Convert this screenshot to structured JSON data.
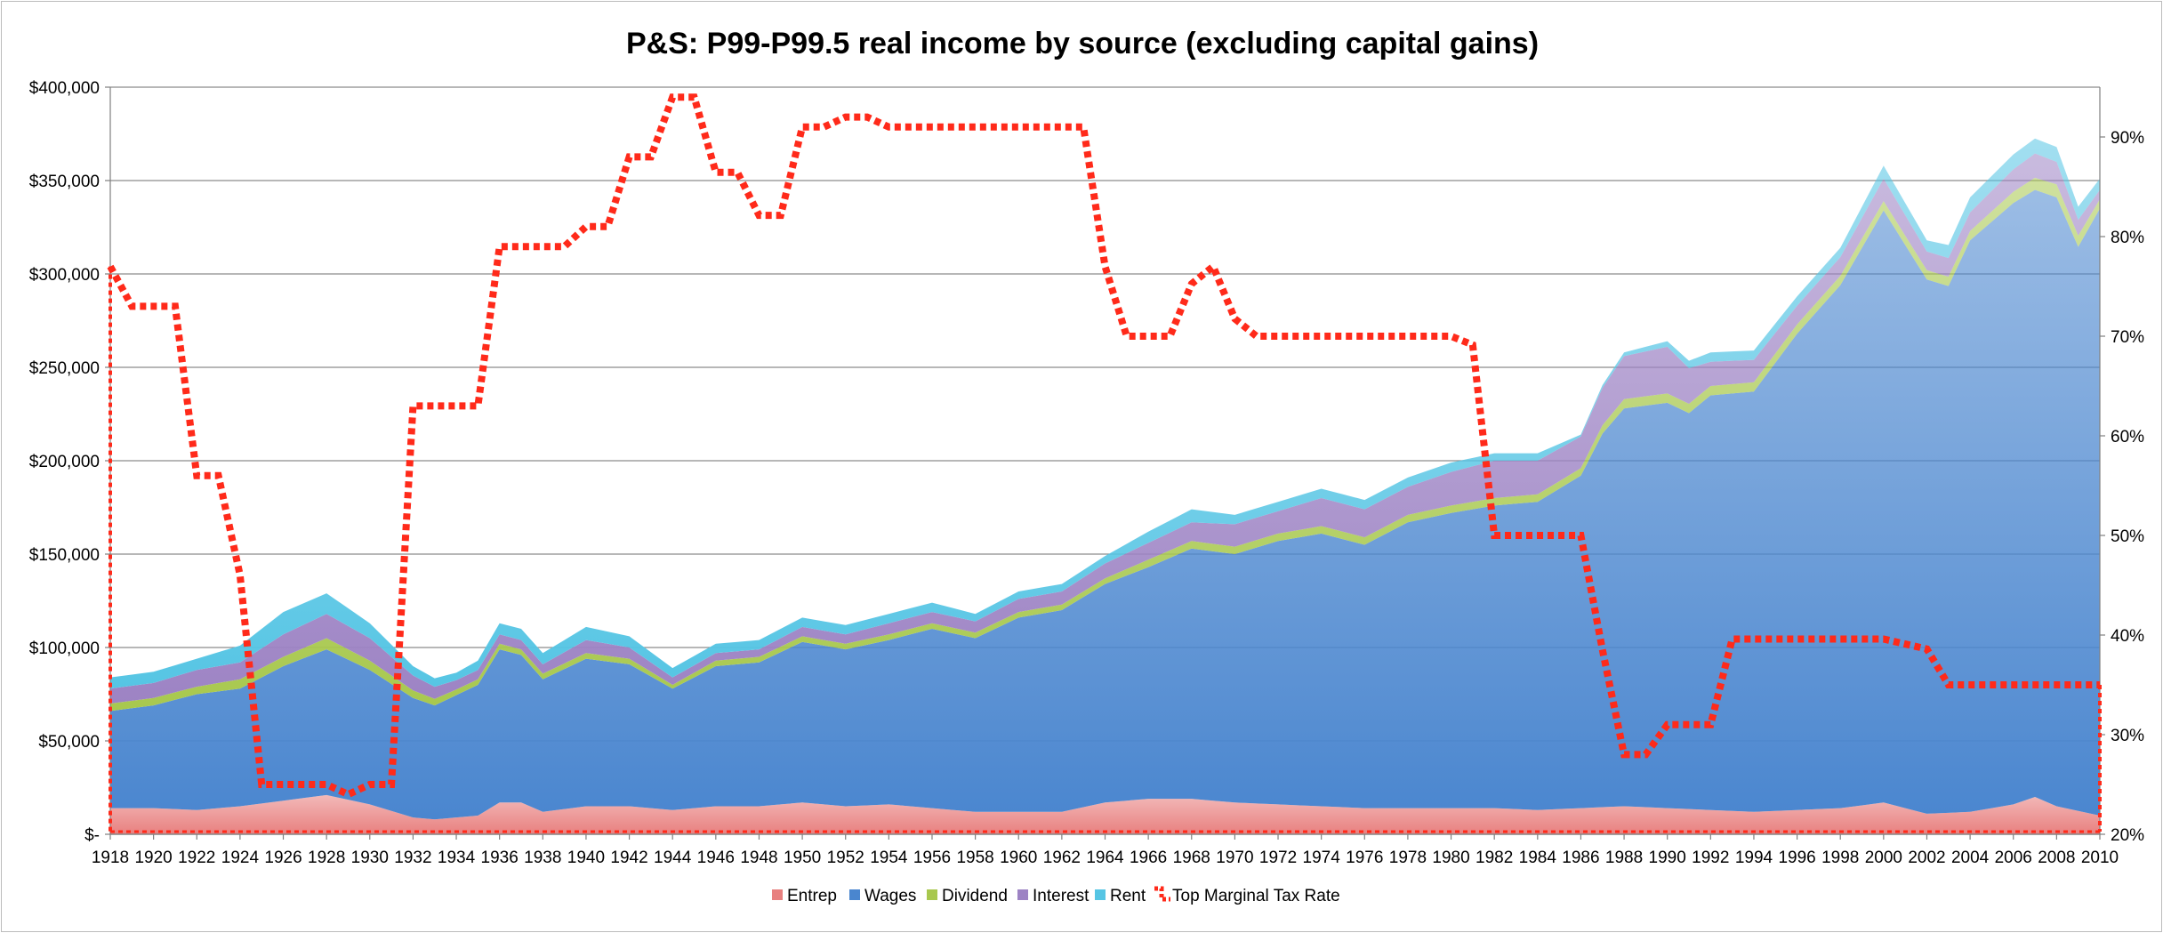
{
  "chart_data": {
    "type": "area",
    "title": "P&S: P99-P99.5 real income by source (excluding capital gains)",
    "x_tick_labels": [
      "1918",
      "1920",
      "1922",
      "1924",
      "1926",
      "1928",
      "1930",
      "1932",
      "1934",
      "1936",
      "1938",
      "1940",
      "1942",
      "1944",
      "1946",
      "1948",
      "1950",
      "1952",
      "1954",
      "1956",
      "1958",
      "1960",
      "1962",
      "1964",
      "1966",
      "1968",
      "1970",
      "1972",
      "1974",
      "1976",
      "1978",
      "1980",
      "1982",
      "1984",
      "1986",
      "1988",
      "1990",
      "1992",
      "1994",
      "1996",
      "1998",
      "2000",
      "2002",
      "2004",
      "2006",
      "2008",
      "2010"
    ],
    "y_left": {
      "min": 0,
      "max": 400000,
      "tick_labels": [
        "$-",
        "$50,000",
        "$100,000",
        "$150,000",
        "$200,000",
        "$250,000",
        "$300,000",
        "$350,000",
        "$400,000"
      ]
    },
    "y_right": {
      "min": 20,
      "max": 95,
      "tick_labels": [
        "20%",
        "30%",
        "40%",
        "50%",
        "60%",
        "70%",
        "80%",
        "90%"
      ]
    },
    "x_range": [
      1918,
      2010
    ],
    "grid": "horizontal",
    "legend_position": "bottom",
    "series": [
      {
        "name": "Entrep",
        "color": "#e8807f",
        "keys_years": [
          1918,
          1920,
          1922,
          1924,
          1926,
          1928,
          1930,
          1932,
          1933,
          1935,
          1936,
          1937,
          1938,
          1940,
          1942,
          1944,
          1946,
          1948,
          1950,
          1952,
          1954,
          1956,
          1958,
          1960,
          1962,
          1964,
          1966,
          1968,
          1970,
          1972,
          1974,
          1976,
          1978,
          1980,
          1982,
          1984,
          1986,
          1988,
          1990,
          1992,
          1994,
          1996,
          1998,
          2000,
          2002,
          2004,
          2006,
          2007,
          2008,
          2010
        ],
        "values": [
          14000,
          14000,
          13000,
          15000,
          18000,
          21000,
          16000,
          9000,
          8000,
          10000,
          17000,
          17000,
          12000,
          15000,
          15000,
          13000,
          15000,
          15000,
          17000,
          15000,
          16000,
          14000,
          12000,
          12000,
          12000,
          17000,
          19000,
          19000,
          17000,
          16000,
          15000,
          14000,
          14000,
          14000,
          14000,
          13000,
          14000,
          15000,
          14000,
          13000,
          12000,
          13000,
          14000,
          17000,
          11000,
          12000,
          16000,
          20000,
          15000,
          10000
        ]
      },
      {
        "name": "Wages",
        "color": "#4a86cf",
        "keys_years": [
          1918,
          1920,
          1922,
          1924,
          1926,
          1928,
          1930,
          1932,
          1933,
          1935,
          1936,
          1937,
          1938,
          1940,
          1942,
          1944,
          1946,
          1948,
          1950,
          1952,
          1954,
          1956,
          1958,
          1960,
          1962,
          1964,
          1966,
          1968,
          1970,
          1972,
          1974,
          1976,
          1978,
          1980,
          1982,
          1984,
          1986,
          1987,
          1988,
          1990,
          1991,
          1992,
          1994,
          1996,
          1998,
          2000,
          2002,
          2003,
          2004,
          2006,
          2007,
          2008,
          2009,
          2010
        ],
        "values": [
          52000,
          55000,
          62000,
          63000,
          72000,
          78000,
          72000,
          64000,
          61000,
          70000,
          82000,
          79000,
          71000,
          79000,
          76000,
          65000,
          75000,
          77000,
          86000,
          84000,
          88000,
          96000,
          93000,
          104000,
          108000,
          117000,
          124000,
          134000,
          133000,
          141000,
          146000,
          141000,
          153000,
          158000,
          162000,
          165000,
          178000,
          200000,
          213000,
          217000,
          212000,
          222000,
          225000,
          255000,
          280000,
          317000,
          286000,
          282000,
          306000,
          322000,
          325000,
          326000,
          302000,
          325000
        ]
      },
      {
        "name": "Dividend",
        "color": "#a8c84e",
        "keys_years": [
          1918,
          1920,
          1922,
          1924,
          1926,
          1928,
          1930,
          1932,
          1934,
          1936,
          1938,
          1940,
          1942,
          1944,
          1946,
          1948,
          1950,
          1952,
          1954,
          1956,
          1958,
          1960,
          1962,
          1964,
          1966,
          1968,
          1970,
          1972,
          1974,
          1976,
          1978,
          1980,
          1982,
          1984,
          1986,
          1988,
          1990,
          1992,
          1994,
          1996,
          1998,
          2000,
          2002,
          2004,
          2006,
          2008,
          2010
        ],
        "values": [
          4000,
          4000,
          4000,
          5000,
          5000,
          6000,
          5000,
          4000,
          3000,
          3000,
          3000,
          3000,
          3000,
          2000,
          3000,
          3000,
          3000,
          3000,
          3000,
          3000,
          3000,
          3000,
          3000,
          3000,
          4000,
          4000,
          4000,
          4000,
          4000,
          4000,
          4000,
          4000,
          4000,
          4000,
          4000,
          5000,
          5000,
          5000,
          5000,
          5000,
          5000,
          5000,
          5000,
          5000,
          6000,
          7000,
          5000
        ]
      },
      {
        "name": "Interest",
        "color": "#9d83c4",
        "keys_years": [
          1918,
          1920,
          1922,
          1924,
          1926,
          1928,
          1930,
          1932,
          1934,
          1936,
          1938,
          1940,
          1942,
          1944,
          1946,
          1948,
          1950,
          1952,
          1954,
          1956,
          1958,
          1960,
          1962,
          1964,
          1966,
          1968,
          1970,
          1972,
          1974,
          1976,
          1978,
          1980,
          1982,
          1984,
          1986,
          1988,
          1990,
          1992,
          1994,
          1996,
          1998,
          2000,
          2002,
          2004,
          2006,
          2007,
          2008,
          2010
        ],
        "values": [
          8000,
          8000,
          9000,
          9000,
          12000,
          13000,
          12000,
          8000,
          5000,
          5000,
          5000,
          7000,
          6000,
          4000,
          4000,
          4000,
          5000,
          5000,
          6000,
          6000,
          6000,
          7000,
          7000,
          8000,
          9000,
          10000,
          12000,
          12000,
          15000,
          15000,
          15000,
          18000,
          20000,
          18000,
          17000,
          23000,
          25000,
          13000,
          12000,
          10000,
          10000,
          12000,
          10000,
          10000,
          12000,
          13000,
          12000,
          5000
        ]
      },
      {
        "name": "Rent",
        "color": "#56c5e4",
        "keys_years": [
          1918,
          1920,
          1922,
          1924,
          1926,
          1928,
          1930,
          1932,
          1934,
          1936,
          1938,
          1940,
          1942,
          1944,
          1946,
          1948,
          1950,
          1952,
          1954,
          1956,
          1958,
          1960,
          1962,
          1964,
          1966,
          1968,
          1970,
          1972,
          1974,
          1976,
          1978,
          1980,
          1982,
          1984,
          1986,
          1988,
          1990,
          1992,
          1994,
          1996,
          1998,
          2000,
          2002,
          2004,
          2006,
          2007,
          2008,
          2010
        ],
        "values": [
          6000,
          6000,
          6000,
          9000,
          12000,
          11000,
          8000,
          5000,
          4000,
          6000,
          6000,
          7000,
          6000,
          5000,
          5000,
          5000,
          5000,
          5000,
          5000,
          5000,
          4000,
          4000,
          4000,
          4000,
          6000,
          7000,
          5000,
          5000,
          5000,
          5000,
          5000,
          5000,
          4000,
          4000,
          1000,
          2000,
          3000,
          5000,
          5000,
          5000,
          5000,
          7000,
          6000,
          8000,
          8000,
          8000,
          8000,
          6000
        ]
      }
    ],
    "line_series": {
      "name": "Top Marginal Tax Rate",
      "color": "#ff2a1a",
      "axis": "right",
      "years": [
        1918,
        1919,
        1920,
        1921,
        1922,
        1923,
        1924,
        1925,
        1926,
        1927,
        1928,
        1929,
        1930,
        1931,
        1932,
        1933,
        1934,
        1935,
        1936,
        1937,
        1938,
        1939,
        1940,
        1941,
        1942,
        1943,
        1944,
        1945,
        1946,
        1947,
        1948,
        1949,
        1950,
        1951,
        1952,
        1953,
        1954,
        1955,
        1956,
        1957,
        1958,
        1959,
        1960,
        1961,
        1962,
        1963,
        1964,
        1965,
        1966,
        1967,
        1968,
        1969,
        1970,
        1971,
        1972,
        1973,
        1974,
        1975,
        1976,
        1977,
        1978,
        1979,
        1980,
        1981,
        1982,
        1983,
        1984,
        1985,
        1986,
        1987,
        1988,
        1989,
        1990,
        1991,
        1992,
        1993,
        1994,
        1995,
        1996,
        1997,
        1998,
        1999,
        2000,
        2001,
        2002,
        2003,
        2004,
        2005,
        2006,
        2007,
        2008,
        2009,
        2010
      ],
      "values": [
        77,
        73,
        73,
        73,
        56,
        56,
        46,
        25,
        25,
        25,
        25,
        24,
        25,
        25,
        63,
        63,
        63,
        63,
        79,
        79,
        79,
        79,
        81,
        81,
        88,
        88,
        94,
        94,
        86.45,
        86.45,
        82.13,
        82.13,
        91,
        91,
        92,
        92,
        91,
        91,
        91,
        91,
        91,
        91,
        91,
        91,
        91,
        91,
        77,
        70,
        70,
        70,
        75.25,
        77,
        71.75,
        70,
        70,
        70,
        70,
        70,
        70,
        70,
        70,
        70,
        70,
        69.13,
        50,
        50,
        50,
        50,
        50,
        38.5,
        28,
        28,
        31,
        31,
        31,
        39.6,
        39.6,
        39.6,
        39.6,
        39.6,
        39.6,
        39.6,
        39.6,
        39.1,
        38.6,
        35,
        35,
        35,
        35,
        35,
        35,
        35,
        35
      ]
    }
  }
}
